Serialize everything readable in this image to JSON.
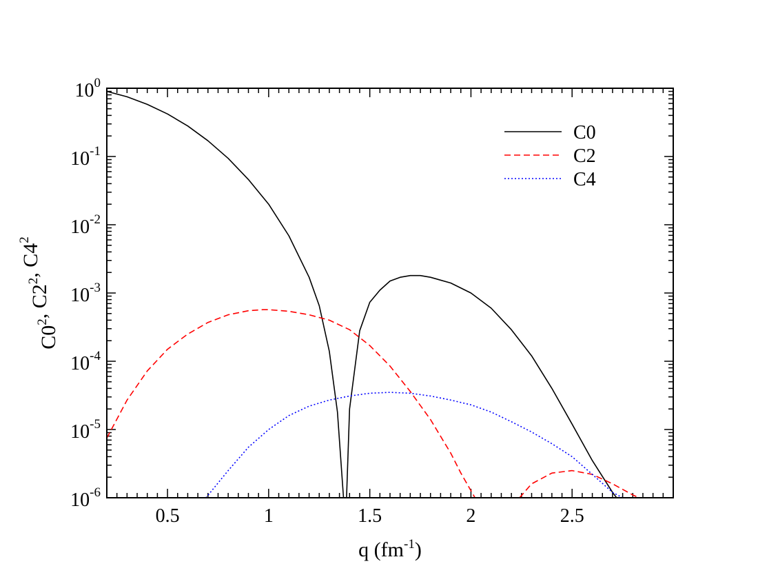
{
  "chart_data": {
    "type": "line",
    "xlabel": {
      "base": "q (fm",
      "sup": "-1",
      "tail": ")"
    },
    "ylabel": {
      "parts": [
        {
          "base": "C0",
          "sup": "2"
        },
        {
          "base": ",  C2",
          "sup": "2"
        },
        {
          "base": ",  C4",
          "sup": "2"
        }
      ]
    },
    "xlim": [
      0.2,
      3.0
    ],
    "ylim": [
      1e-06,
      1
    ],
    "yscale": "log",
    "xticks": [
      {
        "value": 0.5,
        "label": "0.5"
      },
      {
        "value": 1.0,
        "label": "1"
      },
      {
        "value": 1.5,
        "label": "1.5"
      },
      {
        "value": 2.0,
        "label": "2"
      },
      {
        "value": 2.5,
        "label": "2.5"
      }
    ],
    "yticks": [
      {
        "value": 1,
        "base": "10",
        "sup": "0"
      },
      {
        "value": 0.1,
        "base": "10",
        "sup": "-1"
      },
      {
        "value": 0.01,
        "base": "10",
        "sup": "-2"
      },
      {
        "value": 0.001,
        "base": "10",
        "sup": "-3"
      },
      {
        "value": 0.0001,
        "base": "10",
        "sup": "-4"
      },
      {
        "value": 1e-05,
        "base": "10",
        "sup": "-5"
      },
      {
        "value": 1e-06,
        "base": "10",
        "sup": "-6"
      }
    ],
    "legend_position": "top-right",
    "series": [
      {
        "name": "C0",
        "color": "#000000",
        "dash": "solid",
        "points": [
          [
            0.2,
            0.9
          ],
          [
            0.3,
            0.75
          ],
          [
            0.4,
            0.58
          ],
          [
            0.5,
            0.42
          ],
          [
            0.6,
            0.28
          ],
          [
            0.7,
            0.17
          ],
          [
            0.8,
            0.094
          ],
          [
            0.9,
            0.046
          ],
          [
            1.0,
            0.02
          ],
          [
            1.1,
            0.0069
          ],
          [
            1.2,
            0.0017
          ],
          [
            1.25,
            0.00065
          ],
          [
            1.3,
            0.00014
          ],
          [
            1.34,
            1.8e-05
          ],
          [
            1.37,
            1e-06
          ]
        ]
      },
      {
        "name": "C0",
        "color": "#000000",
        "dash": "solid",
        "points": [
          [
            1.385,
            1e-06
          ],
          [
            1.4,
            2e-05
          ],
          [
            1.45,
            0.00028
          ],
          [
            1.5,
            0.00073
          ],
          [
            1.55,
            0.0011
          ],
          [
            1.6,
            0.0015
          ],
          [
            1.65,
            0.0017
          ],
          [
            1.7,
            0.0018
          ],
          [
            1.75,
            0.0018
          ],
          [
            1.8,
            0.0017
          ],
          [
            1.9,
            0.0014
          ],
          [
            2.0,
            0.001
          ],
          [
            2.1,
            0.0006
          ],
          [
            2.2,
            0.00029
          ],
          [
            2.3,
            0.00012
          ],
          [
            2.4,
            4e-05
          ],
          [
            2.5,
            1.2e-05
          ],
          [
            2.6,
            3.5e-06
          ],
          [
            2.7,
            1.2e-06
          ],
          [
            2.72,
            1e-06
          ]
        ]
      },
      {
        "name": "C2",
        "color": "#ff0000",
        "dash": "dashed",
        "points": [
          [
            0.2,
            7.5e-06
          ],
          [
            0.3,
            2.7e-05
          ],
          [
            0.4,
            7.2e-05
          ],
          [
            0.5,
            0.00015
          ],
          [
            0.6,
            0.00025
          ],
          [
            0.7,
            0.00037
          ],
          [
            0.8,
            0.00048
          ],
          [
            0.9,
            0.00055
          ],
          [
            0.97,
            0.00057
          ],
          [
            1.0,
            0.00057
          ],
          [
            1.1,
            0.00054
          ],
          [
            1.2,
            0.00048
          ],
          [
            1.3,
            0.0004
          ],
          [
            1.4,
            0.00029
          ],
          [
            1.5,
            0.00017
          ],
          [
            1.6,
            8.5e-05
          ],
          [
            1.7,
            3.6e-05
          ],
          [
            1.8,
            1.4e-05
          ],
          [
            1.9,
            4.5e-06
          ],
          [
            1.95,
            2.3e-06
          ],
          [
            2.02,
            1e-06
          ]
        ]
      },
      {
        "name": "C2",
        "color": "#ff0000",
        "dash": "dashed",
        "points": [
          [
            2.24,
            1e-06
          ],
          [
            2.3,
            1.6e-06
          ],
          [
            2.4,
            2.3e-06
          ],
          [
            2.5,
            2.5e-06
          ],
          [
            2.6,
            2.2e-06
          ],
          [
            2.7,
            1.6e-06
          ],
          [
            2.8,
            1.1e-06
          ],
          [
            2.83,
            1e-06
          ]
        ]
      },
      {
        "name": "C4",
        "color": "#0000ff",
        "dash": "dotted",
        "points": [
          [
            0.69,
            1e-06
          ],
          [
            0.8,
            2.5e-06
          ],
          [
            0.9,
            5.5e-06
          ],
          [
            1.0,
            1e-05
          ],
          [
            1.1,
            1.6e-05
          ],
          [
            1.2,
            2.2e-05
          ],
          [
            1.3,
            2.7e-05
          ],
          [
            1.4,
            3.1e-05
          ],
          [
            1.5,
            3.4e-05
          ],
          [
            1.6,
            3.5e-05
          ],
          [
            1.7,
            3.4e-05
          ],
          [
            1.8,
            3.1e-05
          ],
          [
            1.9,
            2.7e-05
          ],
          [
            2.0,
            2.3e-05
          ],
          [
            2.1,
            1.8e-05
          ],
          [
            2.2,
            1.3e-05
          ],
          [
            2.3,
            9.2e-06
          ],
          [
            2.4,
            6.2e-06
          ],
          [
            2.5,
            4e-06
          ],
          [
            2.6,
            2.2e-06
          ],
          [
            2.7,
            1.2e-06
          ],
          [
            2.75,
            1e-06
          ]
        ]
      }
    ],
    "legend": [
      {
        "label": "C0",
        "color": "#000000",
        "dash": "solid"
      },
      {
        "label": "C2",
        "color": "#ff0000",
        "dash": "dashed"
      },
      {
        "label": "C4",
        "color": "#0000ff",
        "dash": "dotted"
      }
    ]
  }
}
